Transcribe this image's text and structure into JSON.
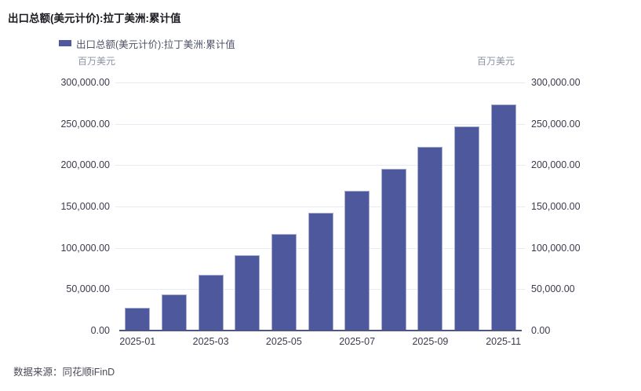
{
  "page": {
    "title": "出口总额(美元计价):拉丁美洲:累计值",
    "source": "数据来源：同花顺iFinD"
  },
  "legend": {
    "label": "出口总额(美元计价):拉丁美洲:累计值"
  },
  "axes": {
    "left_unit": "百万美元",
    "right_unit": "百万美元"
  },
  "colors": {
    "bar": "#4d599c",
    "bar_border": "#a7aed3",
    "gridline": "#e9ebf4",
    "axis_line": "#4c5680",
    "tick_text": "#3b3b4f",
    "unit_text": "#8e93a4"
  },
  "chart_data": {
    "type": "bar",
    "title": "出口总额(美元计价):拉丁美洲:累计值",
    "categories": [
      "2025-01",
      "2025-02",
      "2025-03",
      "2025-04",
      "2025-05",
      "2025-06",
      "2025-07",
      "2025-08",
      "2025-09",
      "2025-10",
      "2025-11"
    ],
    "values": [
      26600,
      43000,
      66400,
      90600,
      115800,
      141400,
      168400,
      194900,
      221300,
      246200,
      272500
    ],
    "x_tick_labels": [
      "2025-01",
      "2025-03",
      "2025-05",
      "2025-07",
      "2025-09",
      "2025-11"
    ],
    "xlabel": "",
    "ylabel": "百万美元",
    "ylim": [
      0,
      300000
    ],
    "y_ticks": [
      0,
      50000,
      100000,
      150000,
      200000,
      250000,
      300000
    ],
    "y_tick_labels": [
      "0.00",
      "50,000.00",
      "100,000.00",
      "150,000.00",
      "200,000.00",
      "250,000.00",
      "300,000.00"
    ],
    "grid": true,
    "legend_position": "top",
    "legend_entries": [
      "出口总额(美元计价):拉丁美洲:累计值"
    ]
  }
}
